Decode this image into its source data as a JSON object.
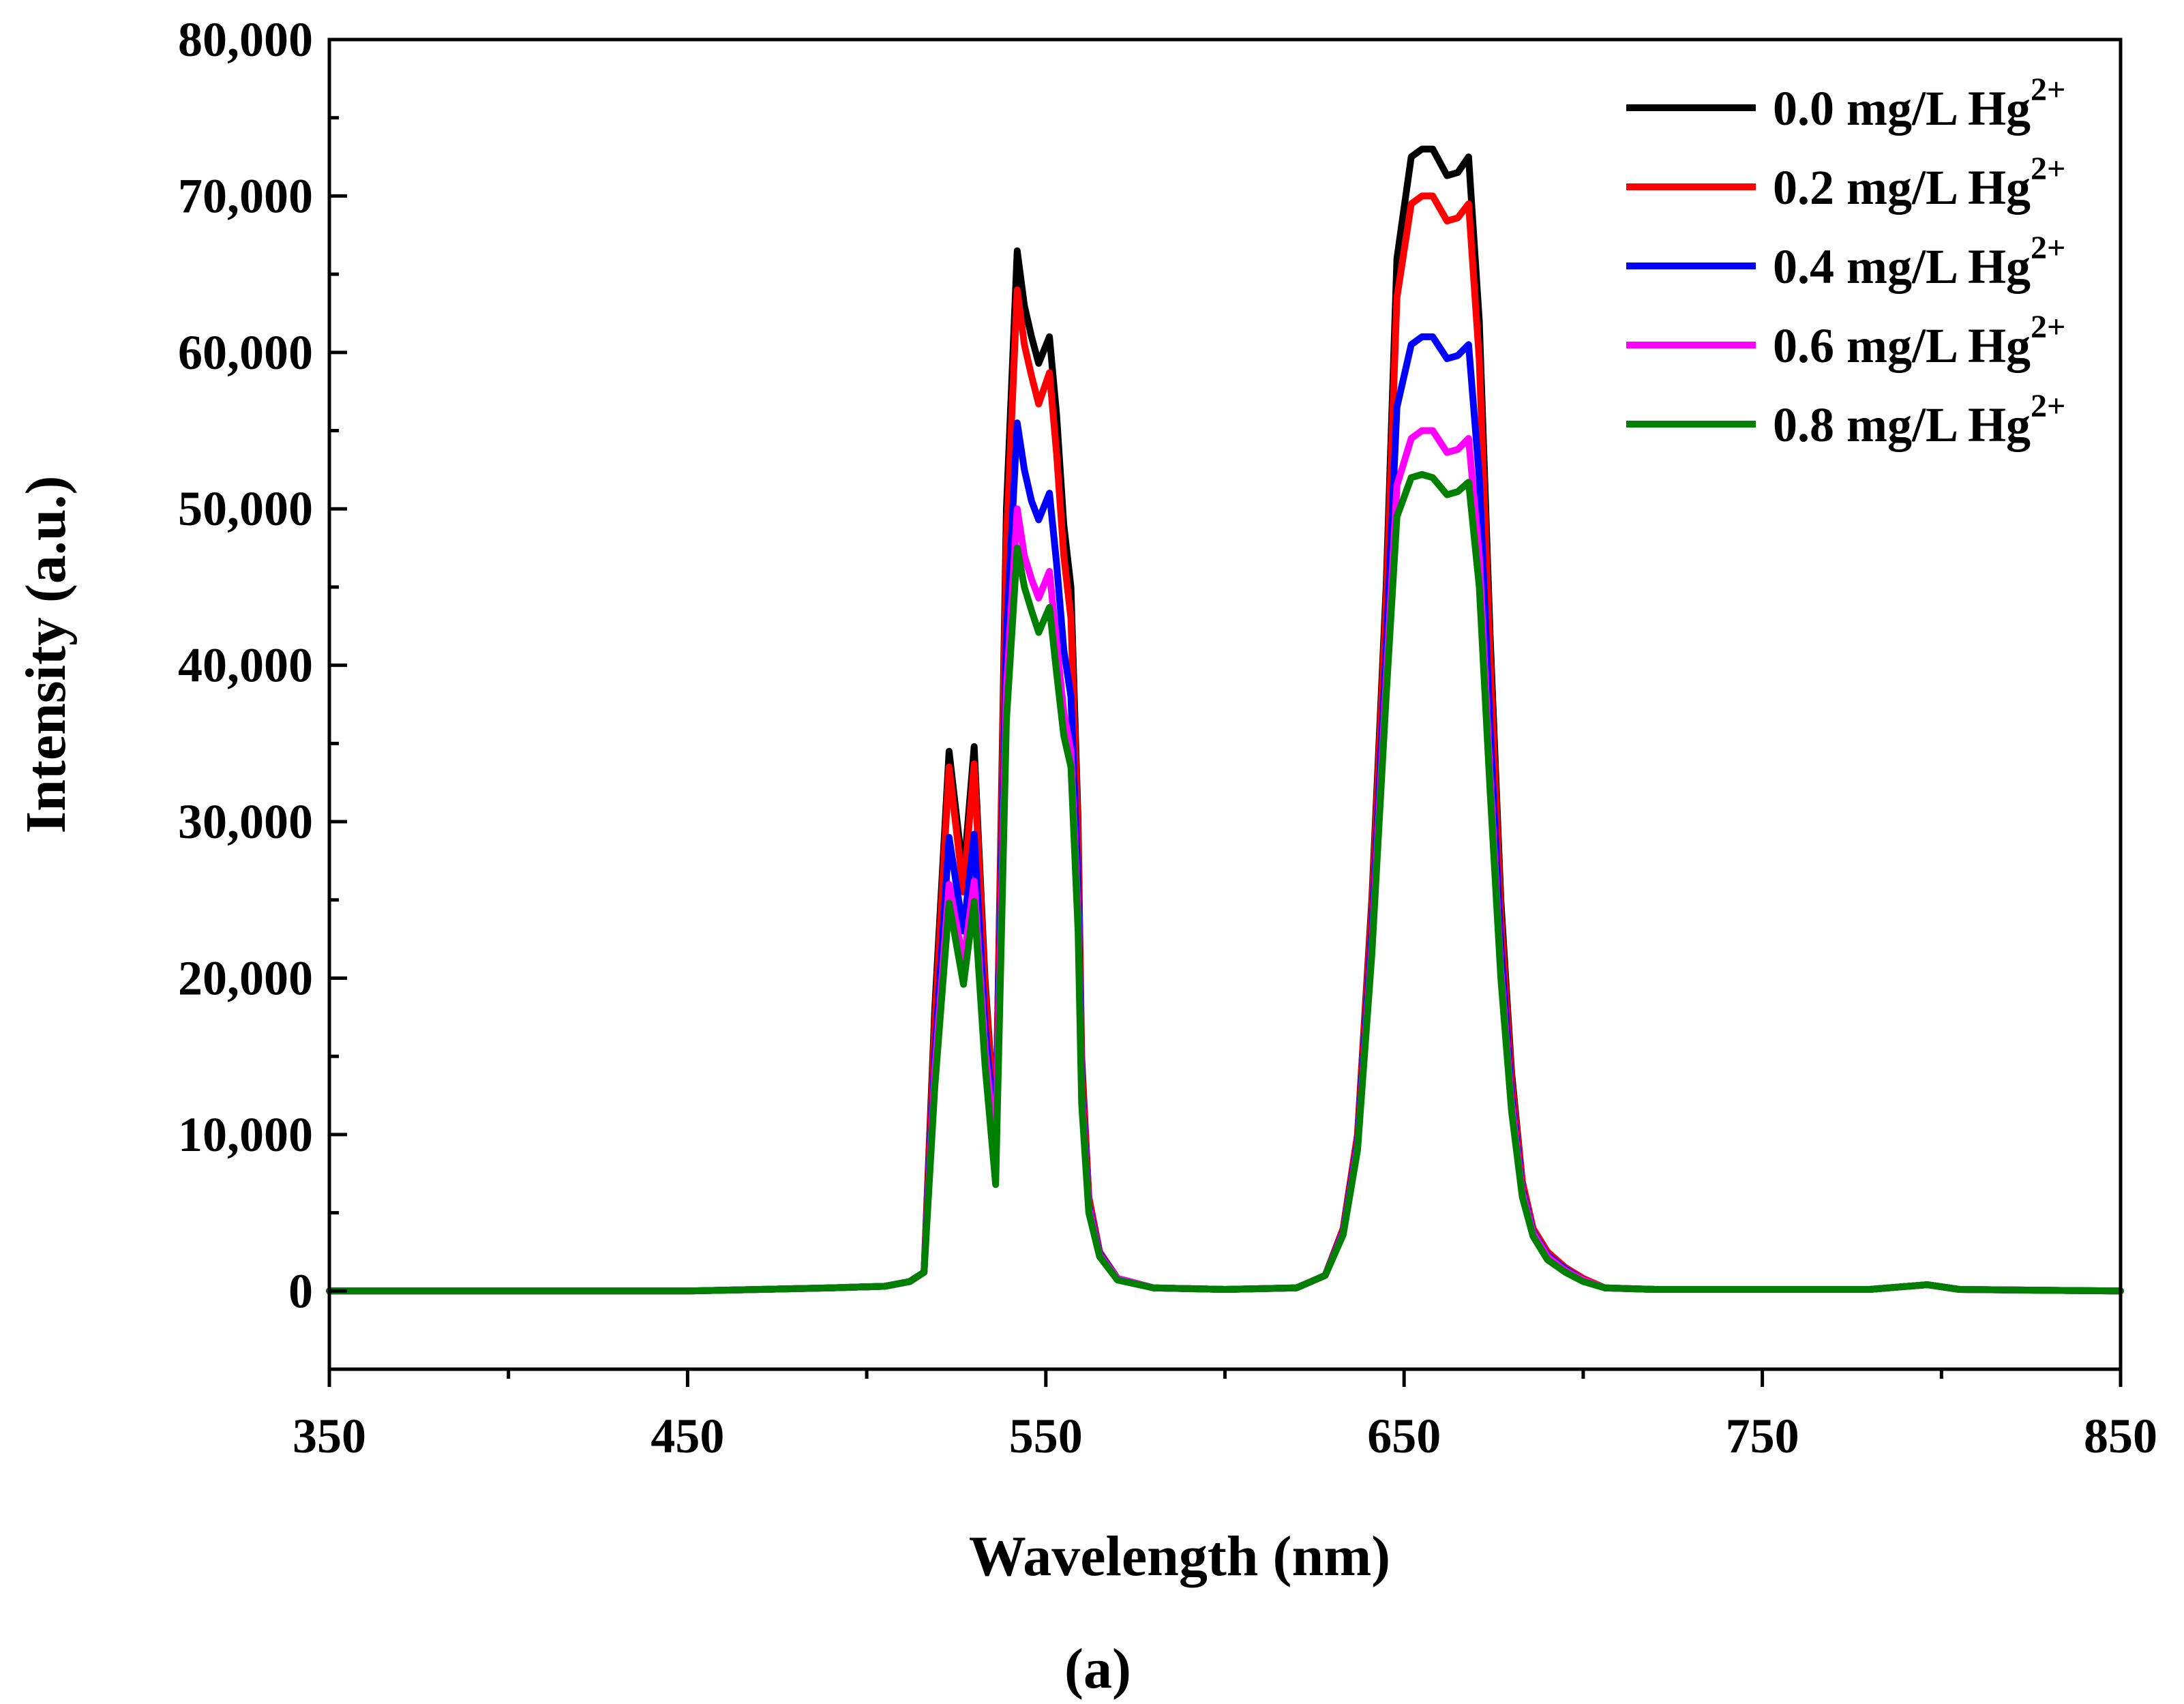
{
  "chart_data": {
    "type": "line",
    "title": "",
    "xlabel": "Wavelength (nm)",
    "ylabel": "Intensity (a.u.)",
    "caption": "(a)",
    "xlim": [
      350,
      850
    ],
    "ylim": [
      -5000,
      80000
    ],
    "xticks": [
      350,
      450,
      550,
      650,
      750,
      850
    ],
    "xtick_labels": [
      "350",
      "450",
      "550",
      "650",
      "750",
      "850"
    ],
    "yticks": [
      0,
      10000,
      20000,
      30000,
      40000,
      50000,
      60000,
      70000,
      80000
    ],
    "ytick_labels": [
      "0",
      "10,000",
      "20,000",
      "30,000",
      "40,000",
      "50,000",
      "60,000",
      "70,000",
      "80,000"
    ],
    "grid": false,
    "legend_position": "top-right",
    "x": [
      350,
      400,
      450,
      490,
      505,
      512,
      516,
      519,
      523,
      527,
      530,
      533,
      536,
      539,
      542,
      544,
      546,
      548,
      551,
      553,
      555,
      557,
      559,
      560,
      562,
      565,
      570,
      580,
      600,
      620,
      628,
      633,
      637,
      641,
      645,
      648,
      652,
      655,
      658,
      662,
      665,
      668,
      671,
      674,
      677,
      680,
      683,
      686,
      690,
      695,
      700,
      706,
      720,
      780,
      796,
      805,
      850
    ],
    "series": [
      {
        "name": "0.0 mg/L Hg",
        "superscript": "2+",
        "color": "#000000",
        "values": [
          0,
          0,
          0,
          200,
          300,
          600,
          1200,
          18000,
          34500,
          26500,
          34800,
          20000,
          10000,
          50000,
          66500,
          63000,
          61000,
          59300,
          61000,
          56000,
          49000,
          45000,
          30000,
          15000,
          6000,
          2500,
          800,
          200,
          100,
          200,
          1000,
          4000,
          10000,
          25000,
          45000,
          66000,
          72500,
          73000,
          73000,
          71300,
          71500,
          72500,
          62000,
          42000,
          25000,
          14000,
          7000,
          4000,
          2500,
          1500,
          800,
          200,
          100,
          100,
          400,
          100,
          0
        ]
      },
      {
        "name": "0.2 mg/L Hg",
        "superscript": "2+",
        "color": "#ff0000",
        "values": [
          0,
          0,
          0,
          200,
          300,
          600,
          1200,
          17000,
          33500,
          25500,
          33700,
          19500,
          10000,
          48000,
          64000,
          60500,
          58500,
          56700,
          58700,
          53500,
          47000,
          43000,
          29000,
          14500,
          6000,
          2500,
          800,
          200,
          100,
          200,
          1000,
          4000,
          10000,
          24500,
          44000,
          63500,
          69500,
          70000,
          70000,
          68400,
          68600,
          69500,
          59500,
          40500,
          24000,
          13500,
          7000,
          4000,
          2500,
          1500,
          800,
          200,
          100,
          100,
          400,
          100,
          0
        ]
      },
      {
        "name": "0.4 mg/L Hg",
        "superscript": "2+",
        "color": "#0000ff",
        "values": [
          0,
          0,
          0,
          200,
          300,
          600,
          1200,
          15000,
          29000,
          23000,
          29200,
          17000,
          9500,
          42000,
          55500,
          52500,
          50500,
          49300,
          51000,
          46500,
          41000,
          38000,
          26000,
          13000,
          5500,
          2400,
          800,
          200,
          100,
          200,
          1000,
          3800,
          9500,
          23000,
          41000,
          56500,
          60500,
          61000,
          61000,
          59600,
          59800,
          60500,
          52000,
          36000,
          22000,
          12500,
          6500,
          3800,
          2300,
          1400,
          700,
          200,
          100,
          100,
          400,
          100,
          0
        ]
      },
      {
        "name": "0.6 mg/L Hg",
        "superscript": "2+",
        "color": "#ff00ff",
        "values": [
          0,
          0,
          0,
          200,
          300,
          600,
          1200,
          14000,
          26000,
          21000,
          26200,
          15500,
          9000,
          38500,
          50000,
          47000,
          45500,
          44300,
          46000,
          41500,
          37000,
          34500,
          24000,
          12500,
          5300,
          2300,
          800,
          200,
          100,
          200,
          1000,
          3700,
          9200,
          22000,
          39000,
          51500,
          54500,
          55000,
          55000,
          53600,
          53800,
          54500,
          47000,
          33000,
          20500,
          12000,
          6300,
          3700,
          2200,
          1300,
          700,
          200,
          100,
          100,
          400,
          100,
          0
        ]
      },
      {
        "name": "0.8 mg/L Hg",
        "superscript": "2+",
        "color": "#008000",
        "values": [
          0,
          0,
          0,
          200,
          300,
          600,
          1200,
          13000,
          24800,
          19600,
          24900,
          14500,
          6800,
          36500,
          47500,
          45000,
          43500,
          42100,
          43700,
          39500,
          35500,
          33500,
          23000,
          12000,
          5000,
          2200,
          700,
          200,
          100,
          200,
          1000,
          3600,
          9000,
          21500,
          38000,
          49500,
          52000,
          52200,
          52000,
          50900,
          51100,
          51700,
          45000,
          32000,
          20000,
          11500,
          6000,
          3500,
          2000,
          1200,
          600,
          200,
          100,
          100,
          400,
          100,
          0
        ]
      }
    ]
  }
}
